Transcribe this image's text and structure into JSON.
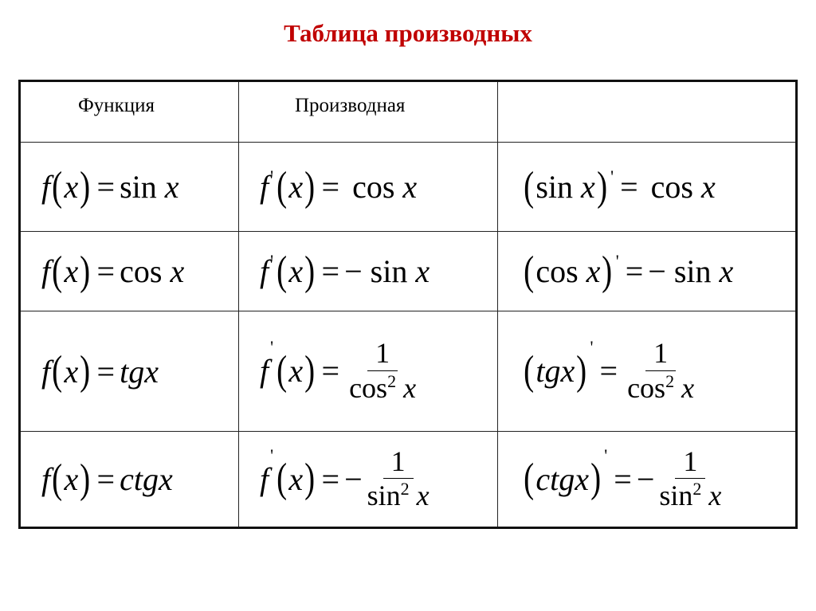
{
  "title": "Таблица производных",
  "headers": [
    "Функция",
    "Производная",
    ""
  ],
  "symbols": {
    "f": "f",
    "x": "x",
    "prime": "'",
    "lp": "(",
    "rp": ")",
    "eq": "="
  },
  "rows": [
    {
      "fn": {
        "name": "sin",
        "var": "x",
        "italic": false
      },
      "deriv": {
        "type": "plain",
        "sign": "",
        "name": "cos",
        "var": "x"
      }
    },
    {
      "fn": {
        "name": "cos",
        "var": "x",
        "italic": false
      },
      "deriv": {
        "type": "plain",
        "sign": "−",
        "name": "sin",
        "var": "x"
      }
    },
    {
      "fn": {
        "name": "tg",
        "var": "x",
        "italic": true
      },
      "deriv": {
        "type": "frac",
        "sign": "",
        "num": "1",
        "den_name": "cos",
        "den_exp": "2",
        "den_var": "x"
      }
    },
    {
      "fn": {
        "name": "ctg",
        "var": "x",
        "italic": true
      },
      "deriv": {
        "type": "frac",
        "sign": "−",
        "num": "1",
        "den_name": "sin",
        "den_exp": "2",
        "den_var": "x"
      }
    }
  ]
}
